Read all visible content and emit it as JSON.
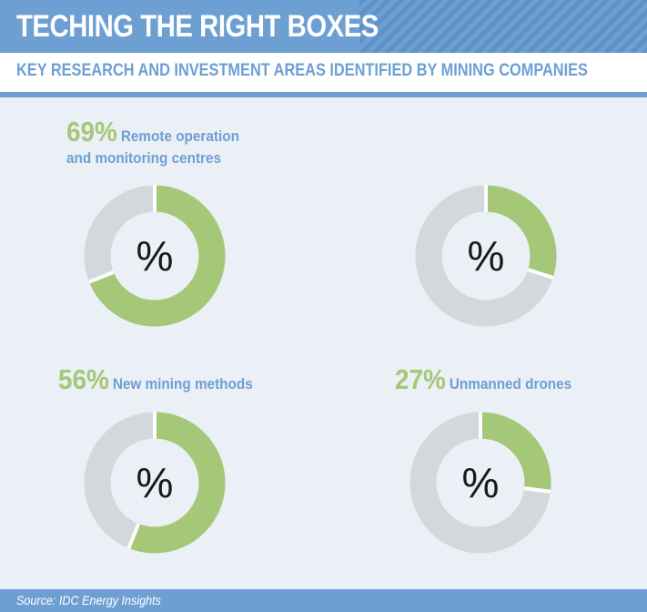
{
  "header": {
    "title": "TECHING THE RIGHT BOXES",
    "subtitle": "KEY RESEARCH AND INVESTMENT AREAS IDENTIFIED BY MINING COMPANIES"
  },
  "footer": {
    "source": "Source: IDC Energy Insights"
  },
  "colors": {
    "accent": "#6e9fd3",
    "filled": "#a5c778",
    "remainder": "#d3d8dc",
    "background": "#eaf0f6"
  },
  "chart_data": [
    {
      "type": "pie",
      "name": "Remote operation and monitoring centres",
      "value": 69,
      "value_label": "69%",
      "label_line1": "Remote operation",
      "label_line2": "and monitoring centres",
      "center": "%"
    },
    {
      "type": "pie",
      "name": "",
      "value": 30,
      "value_label": "",
      "center": "%"
    },
    {
      "type": "pie",
      "name": "New mining methods",
      "value": 56,
      "value_label": "56%",
      "label_line1": "New mining methods",
      "center": "%"
    },
    {
      "type": "pie",
      "name": "Unmanned drones",
      "value": 27,
      "value_label": "27%",
      "label_line1": "Unmanned drones",
      "center": "%"
    }
  ]
}
